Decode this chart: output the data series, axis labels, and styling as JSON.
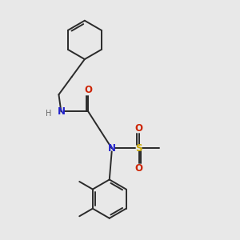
{
  "bg_color": "#e8e8e8",
  "bond_color": "#2a2a2a",
  "N_color": "#2222cc",
  "O_color": "#cc2200",
  "S_color": "#ccaa00",
  "font_size": 8.5,
  "fig_width": 3.0,
  "fig_height": 3.0,
  "xlim": [
    0,
    10
  ],
  "ylim": [
    0,
    10
  ]
}
